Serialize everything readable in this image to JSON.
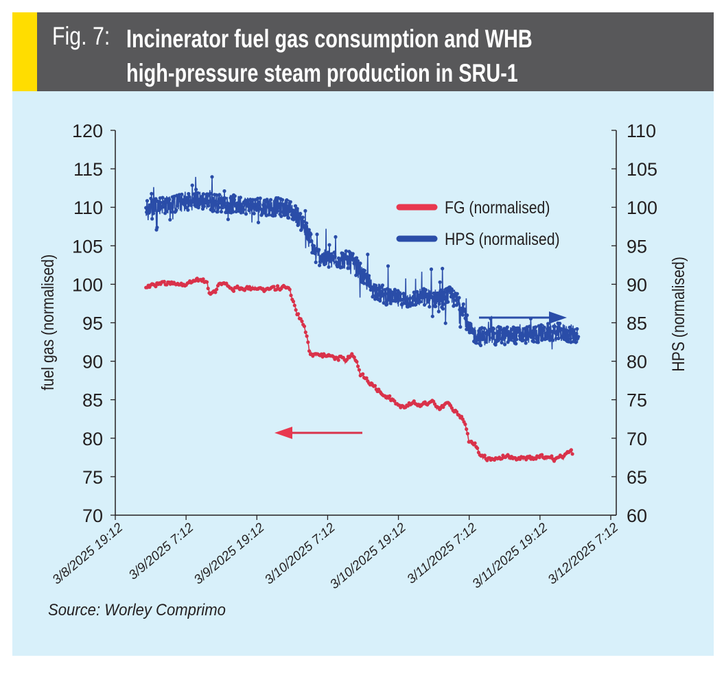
{
  "figure": {
    "label": "Fig. 7:",
    "title_line1": "Incinerator fuel gas consumption and WHB",
    "title_line2": "high-pressure steam production in SRU-1",
    "source": "Source: Worley Comprimo",
    "colors": {
      "header_bg": "#58585a",
      "accent_strip": "#ffdd00",
      "panel_bg": "#d8f0fa",
      "fg_series": "#d9324a",
      "hps_series": "#2a4da8"
    }
  },
  "chart_data": {
    "type": "scatter",
    "title": "Incinerator fuel gas consumption and WHB high-pressure steam production in SRU-1",
    "xlabel": "",
    "ylabel": "fuel gas (normalised)",
    "y2label": "HPS (normalised)",
    "x_unit": "hours since 3/8/2025 19:12",
    "xlim": [
      0,
      84
    ],
    "ylim": [
      70,
      120
    ],
    "y2lim": [
      60,
      110
    ],
    "grid": false,
    "x_tick_labels": [
      "3/8/2025 19:12",
      "3/9/2025 7:12",
      "3/9/2025 19:12",
      "3/10/2025 7:12",
      "3/10/2025 19:12",
      "3/11/2025 7:12",
      "3/11/2025 19:12",
      "3/12/2025 7:12"
    ],
    "x_ticks": [
      0,
      12,
      24,
      36,
      48,
      60,
      72,
      84
    ],
    "y_ticks": [
      70,
      75,
      80,
      85,
      90,
      95,
      100,
      105,
      110,
      115,
      120
    ],
    "y2_ticks": [
      60,
      65,
      70,
      75,
      80,
      85,
      90,
      95,
      100,
      105,
      110
    ],
    "legend": {
      "placement": "top-right",
      "entries": [
        "FG (normalised)",
        "HPS (normalised)"
      ]
    },
    "annotations": [
      {
        "type": "arrow",
        "series": "FG (normalised)",
        "points_to": "left axis"
      },
      {
        "type": "arrow",
        "series": "HPS (normalised)",
        "points_to": "right axis"
      }
    ],
    "series": [
      {
        "name": "FG (normalised)",
        "axis": "left",
        "color": "#d9324a",
        "noise": 0.5,
        "x": [
          5.2,
          8,
          10,
          12,
          14,
          15.5,
          16,
          17,
          18,
          20,
          22,
          24,
          26,
          28,
          29.5,
          30.5,
          31.5,
          32.5,
          33,
          34,
          35,
          36,
          38,
          39,
          40,
          40.5,
          41.5,
          43,
          45,
          47,
          48.5,
          50,
          52,
          54,
          55,
          56,
          57,
          58,
          59,
          59.5,
          60,
          61,
          62,
          64,
          66,
          68,
          70,
          72,
          74,
          76,
          77.5
        ],
        "y": [
          99.5,
          100.2,
          100.0,
          100.1,
          100.6,
          100.2,
          98.8,
          99.2,
          100.2,
          99.4,
          99.6,
          99.4,
          99.4,
          99.5,
          99.4,
          96.8,
          95.2,
          93.5,
          91.0,
          90.9,
          90.8,
          90.6,
          90.5,
          89.8,
          91.0,
          90.5,
          88.5,
          87.5,
          86.0,
          85.0,
          84.0,
          84.3,
          84.5,
          84.6,
          83.6,
          84.8,
          84.2,
          83.2,
          82.3,
          81.5,
          79.5,
          79.2,
          77.5,
          77.3,
          77.5,
          77.2,
          77.4,
          77.6,
          77.3,
          77.6,
          78.2
        ]
      },
      {
        "name": "HPS (normalised)",
        "axis": "right",
        "color": "#2a4da8",
        "noise": 1.2,
        "x": [
          5.2,
          8,
          12,
          14,
          16,
          20,
          24,
          28,
          29.5,
          31,
          32,
          33,
          34,
          35,
          36,
          38,
          40,
          41,
          42,
          43,
          44,
          46,
          48,
          50,
          52,
          54,
          55.5,
          56,
          57,
          58,
          59,
          59.5,
          60,
          61,
          62,
          64,
          66,
          68,
          70,
          72,
          74,
          76,
          78.5
        ],
        "y": [
          100.0,
          100.3,
          100.6,
          101.0,
          100.7,
          100.4,
          100.2,
          100.0,
          99.8,
          98.8,
          97.5,
          96.0,
          93.8,
          93.5,
          93.2,
          93.3,
          93.0,
          92.2,
          91.0,
          90.0,
          89.2,
          88.5,
          88.0,
          88.0,
          88.3,
          88.2,
          88.2,
          88.5,
          88.5,
          87.8,
          87.0,
          85.2,
          84.0,
          83.5,
          83.2,
          83.3,
          83.3,
          83.4,
          83.5,
          83.6,
          83.8,
          83.7,
          83.5
        ]
      }
    ]
  }
}
